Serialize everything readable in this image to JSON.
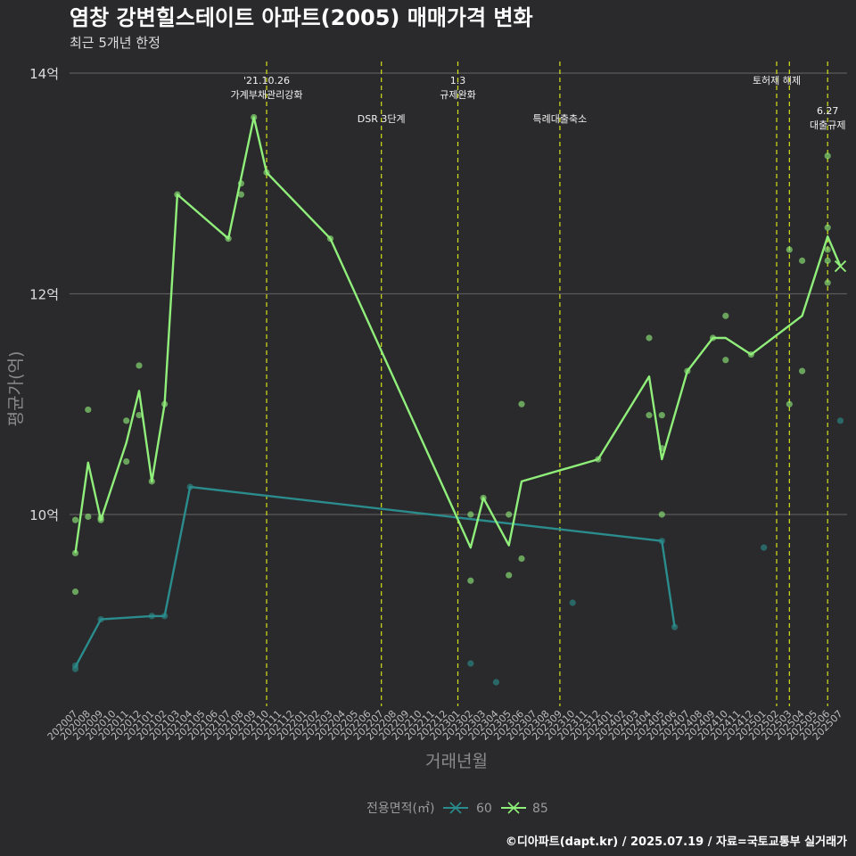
{
  "title": "염창 강변힐스테이트 아파트(2005) 매매가격 변화",
  "subtitle": "최근 5개년 한정",
  "caption": "©디아파트(dapt.kr) / 2025.07.19 / 자료=국토교통부 실거래가",
  "colors": {
    "background": "#2a2a2c",
    "series_60": "#2a8c8c",
    "series_85": "#90ee7a",
    "event_line": "#d4e21a",
    "grid": "#5a5a5a"
  },
  "chart_data": {
    "type": "line",
    "title": "염창 강변힐스테이트 아파트(2005) 매매가격 변화",
    "subtitle": "최근 5개년 한정",
    "xlabel": "거래년월",
    "ylabel": "평균가(억)",
    "ylim": [
      8.2,
      14.2
    ],
    "yticks": [
      10,
      12,
      14
    ],
    "ytick_labels": [
      "10억",
      "12억",
      "14억"
    ],
    "grid": true,
    "legend_position": "bottom",
    "legend_title": "전용면적(㎡)",
    "x_categories": [
      "202007",
      "202008",
      "202009",
      "202010",
      "202011",
      "202012",
      "202101",
      "202102",
      "202103",
      "202104",
      "202105",
      "202106",
      "202107",
      "202108",
      "202109",
      "202110",
      "202111",
      "202112",
      "202201",
      "202202",
      "202203",
      "202204",
      "202205",
      "202206",
      "202207",
      "202208",
      "202209",
      "202210",
      "202211",
      "202212",
      "202301",
      "202302",
      "202303",
      "202304",
      "202305",
      "202306",
      "202307",
      "202308",
      "202309",
      "202310",
      "202311",
      "202312",
      "202401",
      "202402",
      "202403",
      "202404",
      "202405",
      "202406",
      "202407",
      "202408",
      "202409",
      "202410",
      "202411",
      "202412",
      "202501",
      "202502",
      "202503",
      "202504",
      "202505",
      "202506",
      "202507"
    ],
    "events": [
      {
        "x": "202110",
        "label_lines": [
          "'21.10.26",
          "가계부채관리강화"
        ],
        "level": 1
      },
      {
        "x": "202207",
        "label_lines": [
          "DSR 3단계"
        ],
        "level": 2
      },
      {
        "x": "202301",
        "label_lines": [
          "1.3",
          "규제완화"
        ],
        "level": 1
      },
      {
        "x": "202309",
        "label_lines": [
          "특례대출축소"
        ],
        "level": 2
      },
      {
        "x": "202502",
        "label_lines": [
          "토허제 해제"
        ],
        "level": 1
      },
      {
        "x": "202503",
        "label_lines": [],
        "level": 0
      },
      {
        "x": "202506",
        "label_lines": [
          "6.27",
          "대출규제"
        ],
        "level": 3
      }
    ],
    "series": [
      {
        "name": "60",
        "line": [
          [
            "202007",
            8.62
          ],
          [
            "202009",
            9.05
          ],
          [
            "202101",
            9.08
          ],
          [
            "202102",
            9.08
          ],
          [
            "202104",
            10.25
          ],
          [
            "202405",
            9.76
          ],
          [
            "202406",
            8.98
          ]
        ],
        "points": [
          [
            "202007",
            8.6
          ],
          [
            "202007",
            8.63
          ],
          [
            "202009",
            9.05
          ],
          [
            "202101",
            9.08
          ],
          [
            "202102",
            9.08
          ],
          [
            "202104",
            10.25
          ],
          [
            "202302",
            8.65
          ],
          [
            "202304",
            8.48
          ],
          [
            "202310",
            9.2
          ],
          [
            "202405",
            9.76
          ],
          [
            "202406",
            8.98
          ],
          [
            "202501",
            9.7
          ],
          [
            "202507",
            10.85
          ]
        ],
        "last_marker": null
      },
      {
        "name": "85",
        "line": [
          [
            "202007",
            9.65
          ],
          [
            "202008",
            10.47
          ],
          [
            "202009",
            9.95
          ],
          [
            "202011",
            10.65
          ],
          [
            "202012",
            11.12
          ],
          [
            "202101",
            10.3
          ],
          [
            "202102",
            11.0
          ],
          [
            "202103",
            12.9
          ],
          [
            "202107",
            12.5
          ],
          [
            "202109",
            13.6
          ],
          [
            "202110",
            13.1
          ],
          [
            "202203",
            12.5
          ],
          [
            "202302",
            9.7
          ],
          [
            "202303",
            10.15
          ],
          [
            "202305",
            9.72
          ],
          [
            "202306",
            10.3
          ],
          [
            "202312",
            10.5
          ],
          [
            "202404",
            11.25
          ],
          [
            "202405",
            10.5
          ],
          [
            "202407",
            11.3
          ],
          [
            "202409",
            11.6
          ],
          [
            "202410",
            11.6
          ],
          [
            "202412",
            11.45
          ],
          [
            "202504",
            11.8
          ],
          [
            "202506",
            12.52
          ],
          [
            "202507",
            12.25
          ]
        ],
        "points": [
          [
            "202007",
            9.3
          ],
          [
            "202007",
            9.65
          ],
          [
            "202007",
            9.95
          ],
          [
            "202008",
            9.98
          ],
          [
            "202008",
            10.95
          ],
          [
            "202009",
            9.95
          ],
          [
            "202009",
            9.97
          ],
          [
            "202011",
            10.48
          ],
          [
            "202011",
            10.85
          ],
          [
            "202012",
            10.9
          ],
          [
            "202012",
            11.35
          ],
          [
            "202101",
            10.3
          ],
          [
            "202102",
            11.0
          ],
          [
            "202103",
            12.9
          ],
          [
            "202107",
            12.5
          ],
          [
            "202108",
            12.9
          ],
          [
            "202108",
            13.0
          ],
          [
            "202109",
            13.6
          ],
          [
            "202110",
            13.1
          ],
          [
            "202203",
            12.5
          ],
          [
            "202302",
            9.4
          ],
          [
            "202302",
            10.0
          ],
          [
            "202303",
            10.15
          ],
          [
            "202305",
            9.45
          ],
          [
            "202305",
            10.0
          ],
          [
            "202306",
            9.6
          ],
          [
            "202306",
            11.0
          ],
          [
            "202312",
            10.5
          ],
          [
            "202404",
            10.9
          ],
          [
            "202404",
            11.6
          ],
          [
            "202405",
            10.6
          ],
          [
            "202405",
            10.9
          ],
          [
            "202405",
            10.0
          ],
          [
            "202407",
            11.3
          ],
          [
            "202409",
            11.6
          ],
          [
            "202410",
            11.4
          ],
          [
            "202410",
            11.8
          ],
          [
            "202412",
            11.45
          ],
          [
            "202503",
            11.0
          ],
          [
            "202503",
            12.4
          ],
          [
            "202504",
            11.3
          ],
          [
            "202504",
            12.3
          ],
          [
            "202506",
            12.1
          ],
          [
            "202506",
            12.3
          ],
          [
            "202506",
            12.4
          ],
          [
            "202506",
            12.6
          ],
          [
            "202506",
            13.25
          ]
        ],
        "last_marker": [
          "202507",
          12.25
        ]
      }
    ]
  }
}
